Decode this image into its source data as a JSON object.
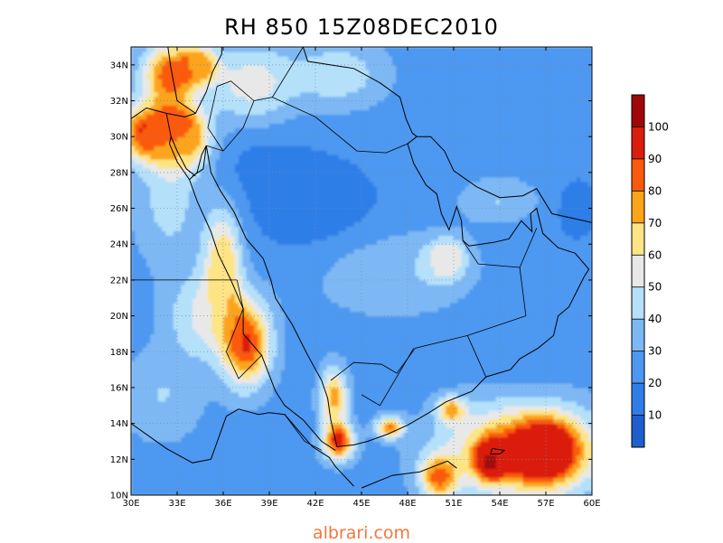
{
  "title": "RH 850 15Z08DEC2010",
  "site_label": "albrari.com",
  "chart_data": {
    "type": "heatmap",
    "variable": "RH",
    "level": "850",
    "time": "15Z08DEC2010",
    "xlim": [
      30,
      60
    ],
    "ylim": [
      10,
      35
    ],
    "lon_ticks": [
      30,
      33,
      36,
      39,
      42,
      45,
      48,
      51,
      54,
      57,
      60
    ],
    "lon_tick_labels": [
      "30E",
      "33E",
      "36E",
      "39E",
      "42E",
      "45E",
      "48E",
      "51E",
      "54E",
      "57E",
      "60E"
    ],
    "lat_ticks": [
      10,
      12,
      14,
      16,
      18,
      20,
      22,
      24,
      26,
      28,
      30,
      32,
      34
    ],
    "lat_tick_labels": [
      "10N",
      "12N",
      "14N",
      "16N",
      "18N",
      "20N",
      "22N",
      "24N",
      "26N",
      "28N",
      "30N",
      "32N",
      "34N"
    ],
    "grid": true,
    "colorbar": {
      "placement": "right",
      "levels": [
        0,
        10,
        20,
        30,
        40,
        50,
        60,
        70,
        80,
        90,
        100,
        110
      ],
      "labels": [
        "10",
        "20",
        "30",
        "40",
        "50",
        "60",
        "70",
        "80",
        "90",
        "100"
      ],
      "colors": [
        "#1e5fcd",
        "#2f7ee8",
        "#4d98f0",
        "#7db8f4",
        "#b4e0fa",
        "#e8e8e8",
        "#fde485",
        "#fca41a",
        "#fb5a0e",
        "#db1d0e",
        "#a00808"
      ]
    },
    "rh_field": {
      "background": 25,
      "features": [
        {
          "lon": 32.5,
          "lat": 33.5,
          "rx": 1.8,
          "ry": 1.8,
          "rh": 85
        },
        {
          "lon": 31.2,
          "lat": 30.2,
          "rx": 2.2,
          "ry": 1.6,
          "rh": 90
        },
        {
          "lon": 33.5,
          "lat": 30.0,
          "rx": 1.6,
          "ry": 1.6,
          "rh": 80
        },
        {
          "lon": 34.5,
          "lat": 34.0,
          "rx": 1.2,
          "ry": 1.0,
          "rh": 70
        },
        {
          "lon": 32.5,
          "lat": 26.5,
          "rx": 2.2,
          "ry": 3.5,
          "rh": 45
        },
        {
          "lon": 37.8,
          "lat": 33.0,
          "rx": 2.8,
          "ry": 2.2,
          "rh": 55
        },
        {
          "lon": 43.5,
          "lat": 33.5,
          "rx": 3.0,
          "ry": 1.8,
          "rh": 48
        },
        {
          "lon": 36.0,
          "lat": 23.0,
          "rx": 1.2,
          "ry": 3.0,
          "rh": 70
        },
        {
          "lon": 37.5,
          "lat": 18.5,
          "rx": 1.6,
          "ry": 2.4,
          "rh": 90
        },
        {
          "lon": 34.5,
          "lat": 20.0,
          "rx": 2.2,
          "ry": 2.5,
          "rh": 50
        },
        {
          "lon": 32.0,
          "lat": 15.5,
          "rx": 2.6,
          "ry": 2.5,
          "rh": 40
        },
        {
          "lon": 43.5,
          "lat": 13.0,
          "rx": 1.0,
          "ry": 1.0,
          "rh": 95
        },
        {
          "lon": 43.2,
          "lat": 15.5,
          "rx": 0.9,
          "ry": 1.6,
          "rh": 75
        },
        {
          "lon": 46.8,
          "lat": 13.8,
          "rx": 0.9,
          "ry": 0.6,
          "rh": 80
        },
        {
          "lon": 50.8,
          "lat": 14.8,
          "rx": 0.9,
          "ry": 0.7,
          "rh": 70
        },
        {
          "lon": 47.0,
          "lat": 22.5,
          "rx": 5.5,
          "ry": 2.4,
          "rh": 40
        },
        {
          "lon": 50.5,
          "lat": 23.2,
          "rx": 1.2,
          "ry": 1.1,
          "rh": 62
        },
        {
          "lon": 55.5,
          "lat": 12.5,
          "rx": 5.0,
          "ry": 2.6,
          "rh": 85
        },
        {
          "lon": 53.5,
          "lat": 12.0,
          "rx": 1.0,
          "ry": 1.0,
          "rh": 100
        },
        {
          "lon": 57.0,
          "lat": 12.5,
          "rx": 2.0,
          "ry": 1.6,
          "rh": 90
        },
        {
          "lon": 50.0,
          "lat": 11.0,
          "rx": 1.2,
          "ry": 1.2,
          "rh": 75
        },
        {
          "lon": 54.0,
          "lat": 26.5,
          "rx": 2.5,
          "ry": 1.2,
          "rh": 40
        },
        {
          "lon": 59.0,
          "lat": 26.0,
          "rx": 1.6,
          "ry": 2.0,
          "rh": 15
        },
        {
          "lon": 42.0,
          "lat": 26.0,
          "rx": 4.5,
          "ry": 3.0,
          "rh": 12
        },
        {
          "lon": 38.5,
          "lat": 28.5,
          "rx": 3.0,
          "ry": 2.0,
          "rh": 18
        },
        {
          "lon": 56.0,
          "lat": 19.0,
          "rx": 3.0,
          "ry": 3.0,
          "rh": 20
        }
      ]
    }
  }
}
